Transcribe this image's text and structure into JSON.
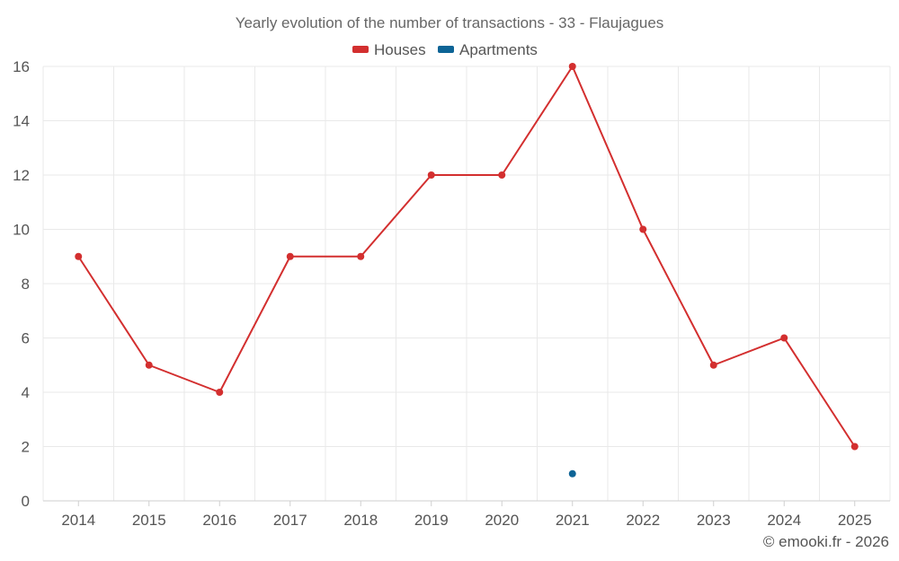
{
  "chart_data": {
    "type": "line",
    "title": "Yearly evolution of the number of transactions - 33 - Flaujagues",
    "categories": [
      "2014",
      "2015",
      "2016",
      "2017",
      "2018",
      "2019",
      "2020",
      "2021",
      "2022",
      "2023",
      "2024",
      "2025"
    ],
    "series": [
      {
        "name": "Houses",
        "color": "#d32f2f",
        "values": [
          9,
          5,
          4,
          9,
          9,
          12,
          12,
          16,
          10,
          5,
          6,
          2
        ]
      },
      {
        "name": "Apartments",
        "color": "#0d6496",
        "values": [
          null,
          null,
          null,
          null,
          null,
          null,
          null,
          1,
          null,
          null,
          null,
          null
        ]
      }
    ],
    "ylim": [
      0,
      16
    ],
    "yticks": [
      "0",
      "2",
      "4",
      "6",
      "8",
      "10",
      "12",
      "14",
      "16"
    ],
    "xlabel": "",
    "ylabel": "",
    "grid": true,
    "legend_position": "top-center"
  },
  "footer": {
    "credit": "© emooki.fr - 2026"
  }
}
